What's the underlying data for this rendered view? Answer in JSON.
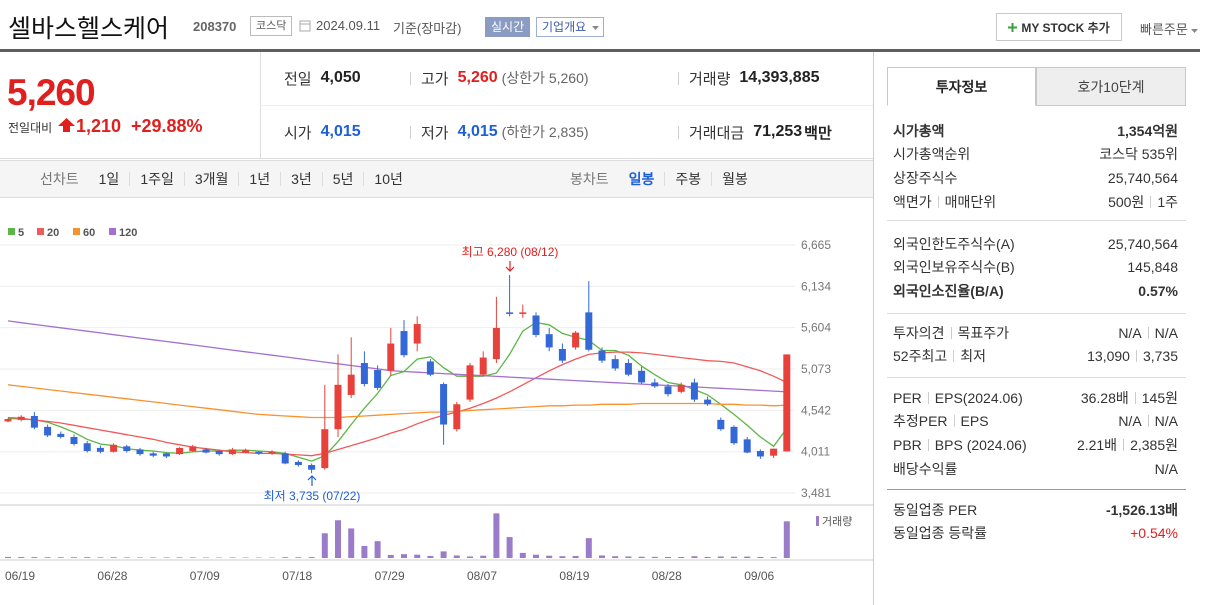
{
  "header": {
    "title": "셀바스헬스케어",
    "code": "208370",
    "market": "코스닥",
    "date": "2024.09.11",
    "basis": "기준(장마감)",
    "realtime": "실시간",
    "company_info": "기업개요",
    "my_stock": "MY STOCK 추가",
    "quick_order": "빠른주문"
  },
  "quote": {
    "price": "5,260",
    "change_label": "전일대비",
    "change": "1,210",
    "change_rate": "+29.88%",
    "rows": [
      [
        {
          "label": "전일",
          "value": "4,050"
        },
        {
          "label": "고가",
          "value": "5,260",
          "sub": "(상한가 5,260)",
          "color": "#e0201e"
        },
        {
          "label": "거래량",
          "value": "14,393,885"
        }
      ],
      [
        {
          "label": "시가",
          "value": "4,015",
          "color": "#1d5fd6"
        },
        {
          "label": "저가",
          "value": "4,015",
          "sub": "(하한가 2,835)",
          "color": "#1d5fd6"
        },
        {
          "label": "거래대금",
          "value": "71,253",
          "unit": "백만"
        }
      ]
    ]
  },
  "chart_tabs": {
    "line_label": "선차트",
    "line_periods": [
      "1일",
      "1주일",
      "3개월",
      "1년",
      "3년",
      "5년",
      "10년"
    ],
    "candle_label": "봉차트",
    "candle_periods": [
      {
        "label": "일봉",
        "active": true
      },
      {
        "label": "주봉"
      },
      {
        "label": "월봉"
      }
    ]
  },
  "invest": {
    "tabs": [
      {
        "label": "투자정보",
        "active": true
      },
      {
        "label": "호가10단계"
      }
    ],
    "groups": [
      [
        {
          "label": [
            "시가총액"
          ],
          "value": [
            "1,354억원"
          ],
          "bold": true
        },
        {
          "label": [
            "시가총액순위"
          ],
          "arrow": true,
          "value": [
            "코스닥 535위"
          ]
        },
        {
          "label": [
            "상장주식수"
          ],
          "value": [
            "25,740,564"
          ]
        },
        {
          "label": [
            "액면가",
            "매매단위"
          ],
          "value": [
            "500원",
            "1주"
          ]
        }
      ],
      [
        {
          "label": [
            "외국인한도주식수(A)"
          ],
          "value": [
            "25,740,564"
          ]
        },
        {
          "label": [
            "외국인보유주식수(B)"
          ],
          "value": [
            "145,848"
          ]
        },
        {
          "label": [
            "외국인소진율(B/A)"
          ],
          "help": true,
          "bold": true,
          "value": [
            "0.57%"
          ]
        }
      ],
      [
        {
          "label": [
            "투자의견",
            "목표주가"
          ],
          "value": [
            "N/A",
            "N/A"
          ]
        },
        {
          "label": [
            "52주최고",
            "최저"
          ],
          "value": [
            "13,090",
            "3,735"
          ]
        }
      ],
      [
        {
          "label": [
            "PER",
            "EPS(2024.06)"
          ],
          "help": true,
          "value": [
            "36.28배",
            "145원"
          ]
        },
        {
          "label": [
            "추정PER",
            "EPS"
          ],
          "help": true,
          "value": [
            "N/A",
            "N/A"
          ]
        },
        {
          "label": [
            "PBR",
            "BPS (2024.06)"
          ],
          "help": true,
          "value": [
            "2.21배",
            "2,385원"
          ]
        },
        {
          "label": [
            "배당수익률"
          ],
          "help": true,
          "value": [
            "N/A"
          ]
        }
      ],
      [
        {
          "label": [
            "동일업종 PER"
          ],
          "arrow": true,
          "value_bold": true,
          "value": [
            "-1,526.13배"
          ]
        },
        {
          "label": [
            "동일업종 등락률"
          ],
          "arrow": true,
          "value": [
            "+0.54%"
          ],
          "value_color": "#e0201e"
        }
      ]
    ]
  },
  "chart_data": [
    {
      "type": "candlestick",
      "categories": [
        "06/19",
        null,
        null,
        null,
        null,
        null,
        null,
        "06/28",
        null,
        null,
        null,
        null,
        null,
        null,
        "07/09",
        null,
        null,
        null,
        null,
        null,
        null,
        "07/18",
        null,
        null,
        null,
        null,
        null,
        null,
        "07/29",
        null,
        null,
        null,
        null,
        null,
        null,
        "08/07",
        null,
        null,
        null,
        null,
        null,
        null,
        "08/19",
        null,
        null,
        null,
        null,
        null,
        null,
        "08/28",
        null,
        null,
        null,
        null,
        null,
        null,
        "09/06",
        null,
        null,
        null
      ],
      "open": [
        4400,
        4420,
        4470,
        4330,
        4240,
        4200,
        4120,
        4060,
        4010,
        4080,
        4040,
        3990,
        3990,
        3980,
        4020,
        4040,
        4020,
        3980,
        4000,
        4010,
        3990,
        3990,
        3880,
        3840,
        3800,
        4300,
        4740,
        5150,
        5060,
        5050,
        5560,
        5400,
        5170,
        4880,
        4300,
        4680,
        5000,
        5200,
        5800,
        5780,
        5760,
        5520,
        5330,
        5350,
        5800,
        5310,
        5200,
        5150,
        5050,
        4900,
        4850,
        4780,
        4900,
        4680,
        4420,
        4330,
        4170,
        4020,
        3960,
        4015
      ],
      "high": [
        4440,
        4480,
        4520,
        4360,
        4270,
        4230,
        4150,
        4090,
        4120,
        4100,
        4060,
        4010,
        4000,
        4070,
        4100,
        4060,
        4040,
        4060,
        4050,
        4020,
        4030,
        4010,
        3900,
        3860,
        4870,
        5260,
        5480,
        5300,
        5120,
        5600,
        5700,
        5750,
        5200,
        4900,
        4650,
        5150,
        5300,
        6000,
        6280,
        5900,
        5800,
        5600,
        5400,
        5560,
        6200,
        5350,
        5250,
        5200,
        5100,
        4950,
        4880,
        4900,
        4950,
        4720,
        4450,
        4350,
        4200,
        4040,
        4050,
        5260
      ],
      "low": [
        4390,
        4400,
        4300,
        4200,
        4180,
        4090,
        4000,
        3990,
        4000,
        4000,
        3960,
        3940,
        3930,
        3970,
        4010,
        3990,
        3960,
        3970,
        3990,
        3970,
        3970,
        3850,
        3820,
        3735,
        3780,
        4200,
        4700,
        4850,
        4800,
        4980,
        5220,
        5300,
        4980,
        4100,
        4270,
        4650,
        4980,
        5150,
        5750,
        5730,
        5480,
        5300,
        5150,
        5320,
        5300,
        5150,
        5050,
        4980,
        4880,
        4830,
        4720,
        4760,
        4650,
        4600,
        4280,
        4100,
        3990,
        3920,
        3930,
        4015
      ],
      "close": [
        4430,
        4460,
        4320,
        4220,
        4200,
        4110,
        4020,
        4010,
        4100,
        4020,
        3980,
        3960,
        3950,
        4060,
        4080,
        4000,
        3980,
        4040,
        4030,
        3990,
        4010,
        3860,
        3840,
        3780,
        4300,
        4870,
        5000,
        4880,
        4830,
        5400,
        5250,
        5650,
        5000,
        4360,
        4620,
        5120,
        5220,
        5600,
        5780,
        5800,
        5510,
        5350,
        5180,
        5540,
        5320,
        5180,
        5080,
        5000,
        4900,
        4850,
        4750,
        4870,
        4680,
        4620,
        4300,
        4120,
        4000,
        3950,
        4050,
        5260
      ],
      "up_color": "#e8403a",
      "down_color": "#3468d6",
      "series": [
        {
          "name": "5",
          "color": "#5cb646",
          "values": [
            4440,
            4430,
            4420,
            4390,
            4330,
            4260,
            4170,
            4110,
            4090,
            4050,
            4030,
            4020,
            4000,
            3990,
            4010,
            4020,
            4020,
            4030,
            4030,
            4020,
            4010,
            3990,
            3940,
            3890,
            3960,
            4140,
            4360,
            4570,
            4760,
            4990,
            5040,
            5200,
            5230,
            5090,
            4980,
            4980,
            4980,
            5020,
            5260,
            5560,
            5670,
            5640,
            5530,
            5480,
            5440,
            5310,
            5310,
            5250,
            5110,
            5000,
            4900,
            4870,
            4810,
            4740,
            4620,
            4490,
            4350,
            4200,
            4080,
            4310
          ]
        },
        {
          "name": "20",
          "color": "#ef5b5b",
          "values": [
            4450,
            4440,
            4420,
            4400,
            4380,
            4350,
            4320,
            4290,
            4260,
            4230,
            4200,
            4170,
            4130,
            4100,
            4070,
            4050,
            4030,
            4010,
            4000,
            3990,
            3990,
            3980,
            3970,
            3960,
            3990,
            4040,
            4090,
            4140,
            4190,
            4250,
            4300,
            4370,
            4430,
            4480,
            4520,
            4570,
            4630,
            4700,
            4780,
            4870,
            4960,
            5050,
            5130,
            5200,
            5260,
            5280,
            5290,
            5290,
            5280,
            5260,
            5240,
            5220,
            5200,
            5180,
            5170,
            5150,
            5100,
            5050,
            4980,
            4900
          ]
        },
        {
          "name": "60",
          "color": "#f7932f",
          "values": [
            4870,
            4850,
            4830,
            4810,
            4790,
            4770,
            4750,
            4730,
            4710,
            4690,
            4670,
            4650,
            4630,
            4610,
            4590,
            4570,
            4550,
            4530,
            4510,
            4490,
            4480,
            4470,
            4460,
            4450,
            4450,
            4450,
            4460,
            4470,
            4480,
            4490,
            4500,
            4510,
            4520,
            4520,
            4530,
            4540,
            4550,
            4560,
            4570,
            4580,
            4590,
            4600,
            4600,
            4610,
            4610,
            4620,
            4620,
            4620,
            4630,
            4630,
            4630,
            4630,
            4630,
            4630,
            4620,
            4620,
            4610,
            4610,
            4600,
            4610
          ]
        },
        {
          "name": "120",
          "color": "#a470d0",
          "values": [
            5690,
            5668,
            5646,
            5624,
            5602,
            5580,
            5558,
            5536,
            5514,
            5492,
            5470,
            5448,
            5426,
            5404,
            5382,
            5360,
            5338,
            5316,
            5294,
            5272,
            5250,
            5228,
            5206,
            5184,
            5162,
            5140,
            5118,
            5096,
            5074,
            5052,
            5041,
            5032,
            5023,
            5014,
            5005,
            4996,
            4987,
            4978,
            4969,
            4960,
            4951,
            4942,
            4933,
            4924,
            4915,
            4906,
            4897,
            4888,
            4879,
            4870,
            4861,
            4852,
            4843,
            4834,
            4825,
            4816,
            4807,
            4798,
            4789,
            4780
          ]
        }
      ],
      "ylim": [
        3481,
        6665
      ],
      "yticks": [
        {
          "value": 3481,
          "label": "3,481"
        },
        {
          "value": 4011,
          "label": "4,011"
        },
        {
          "value": 4542,
          "label": "4,542"
        },
        {
          "value": 5073,
          "label": "5,073"
        },
        {
          "value": 5604,
          "label": "5,604"
        },
        {
          "value": 6134,
          "label": "6,134"
        },
        {
          "value": 6665,
          "label": "6,665"
        }
      ],
      "grid": true,
      "annotations": [
        {
          "text": "최고 6,280 (08/12)"
        },
        {
          "text": "최저 3,735 (07/22)"
        }
      ]
    },
    {
      "type": "bar",
      "series": [
        {
          "name": "거래량",
          "color": "#9b7cc9",
          "values": [
            420000,
            380000,
            350000,
            300000,
            280000,
            300000,
            320000,
            250000,
            280000,
            220000,
            200000,
            210000,
            190000,
            230000,
            210000,
            180000,
            170000,
            200000,
            180000,
            160000,
            170000,
            300000,
            280000,
            350000,
            9700000,
            14800000,
            11600000,
            4700000,
            6600000,
            1200000,
            1500000,
            1300000,
            800000,
            2600000,
            1000000,
            600000,
            900000,
            17500000,
            8200000,
            2000000,
            1300000,
            900000,
            700000,
            800000,
            7800000,
            1000000,
            700000,
            600000,
            500000,
            450000,
            400000,
            380000,
            700000,
            400000,
            600000,
            500000,
            550000,
            400000,
            350000,
            14393885
          ]
        }
      ],
      "ylim": [
        0,
        20000000
      ]
    }
  ]
}
